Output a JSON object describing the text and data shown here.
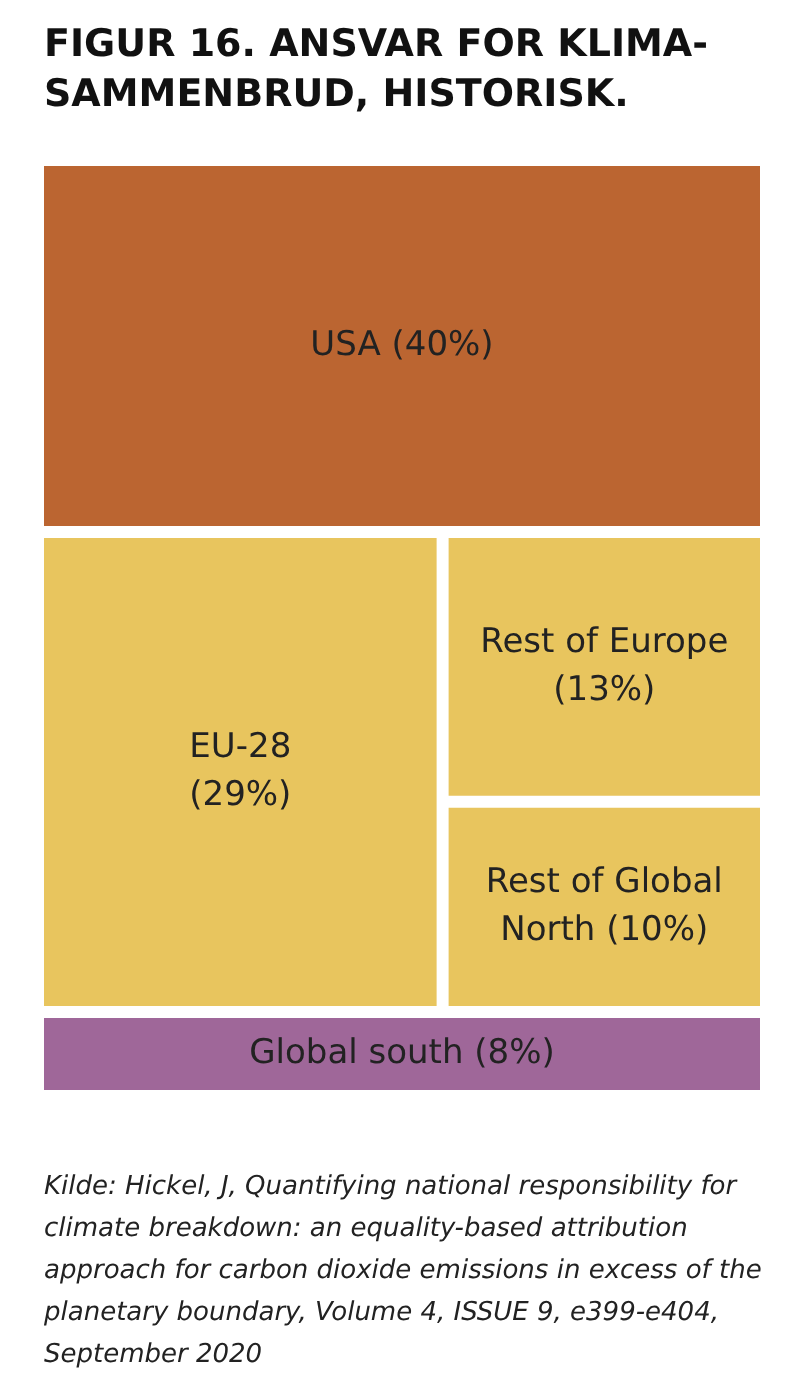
{
  "chart_data": {
    "type": "other",
    "title": "FIGUR 16. ANSVAR FOR KLIMA-SAMMENBRUD, HISTORISK.",
    "categories": [
      "USA",
      "EU-28",
      "Rest of Europe",
      "Rest of Global North",
      "Global south"
    ],
    "values": [
      40,
      29,
      13,
      10,
      8
    ],
    "value_labels": [
      "(40%)",
      "(29%)",
      "(13%)",
      "(10%)",
      "(8%)"
    ],
    "colors": [
      "#bb6531",
      "#e8c55e",
      "#e8c55e",
      "#e8c55e",
      "#9f6799"
    ],
    "annotations": [
      "Kilde: Hickel, J, Quantifying national responsibility for climate breakdown: an equality-based attribution approach for carbon dioxide emissions in excess of the planetary boundary, Volume 4, ISSUE 9, e399-e404, September 2020"
    ]
  }
}
